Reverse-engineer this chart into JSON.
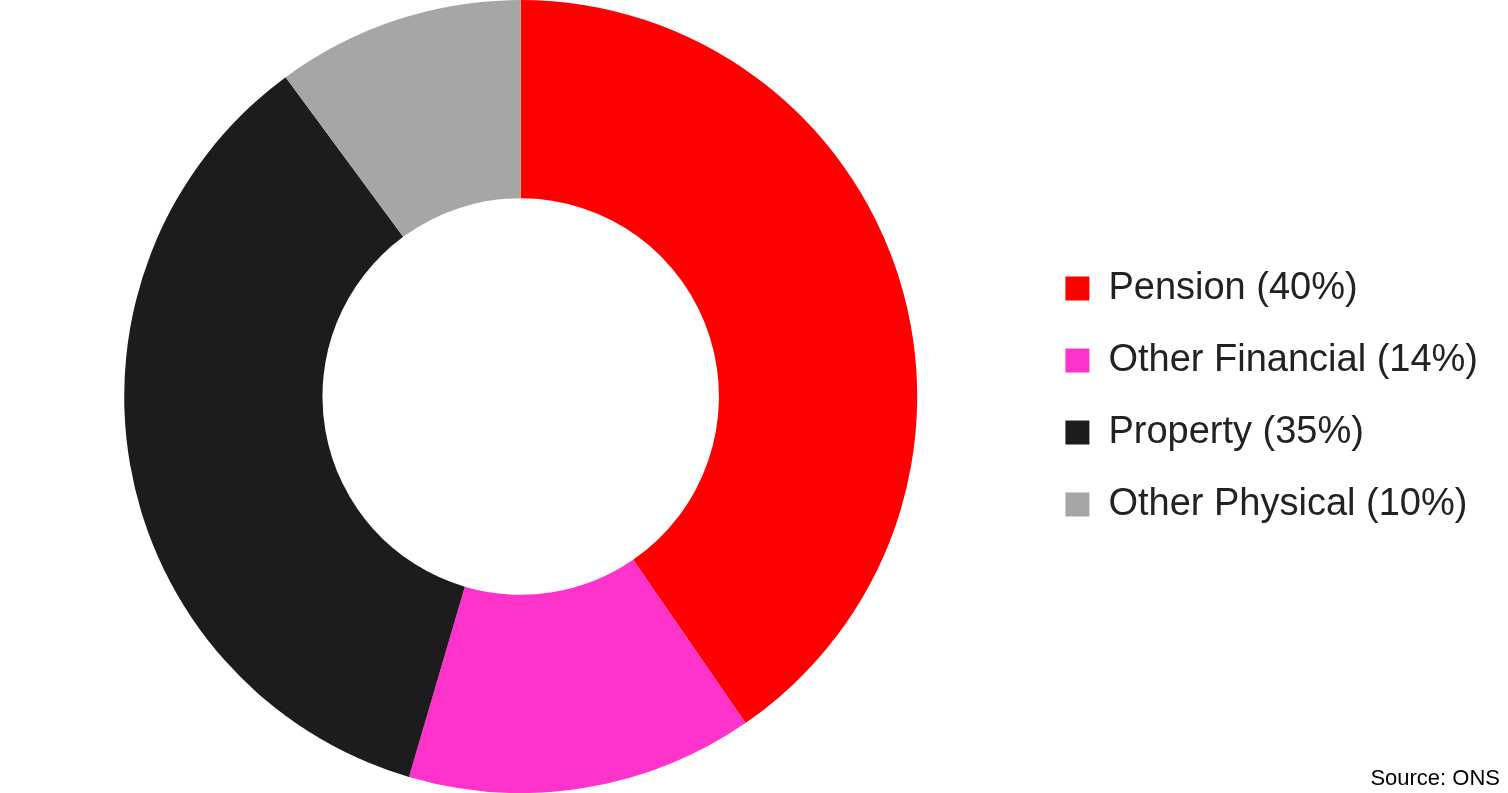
{
  "chart_data": {
    "type": "donut",
    "categories": [
      "Pension (40%)",
      "Other Financial (14%)",
      "Property (35%)",
      "Other Physical (10%)"
    ],
    "values": [
      40,
      14,
      35,
      10
    ],
    "colors": [
      "#ff0000",
      "#ff33cc",
      "#1d1b1e",
      "#a6a6a6"
    ],
    "legend": "right",
    "annotations": [
      "Source: ONS"
    ]
  }
}
